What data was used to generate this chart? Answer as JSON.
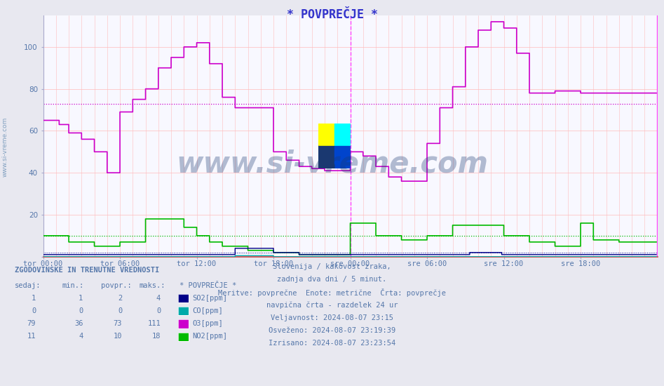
{
  "title": "* POVPREČJE *",
  "title_color": "#3333cc",
  "bg_color": "#e8e8f0",
  "plot_bg_color": "#f8f8ff",
  "ylim": [
    0,
    115
  ],
  "yticks": [
    0,
    20,
    40,
    60,
    80,
    100
  ],
  "tick_color": "#5577aa",
  "xtick_labels": [
    "tor 00:00",
    "tor 06:00",
    "tor 12:00",
    "tor 18:00",
    "sre 00:00",
    "sre 06:00",
    "sre 12:00",
    "sre 18:00"
  ],
  "grid_color": "#ffbbbb",
  "vline_color": "#ff44ff",
  "o3_color": "#cc00cc",
  "no2_color": "#00bb00",
  "so2_color": "#000088",
  "co_color": "#00aaaa",
  "hline_o3": 73,
  "hline_no2": 10,
  "hline_so2": 2,
  "watermark_text": "www.si-vreme.com",
  "watermark_color": "#1a3870",
  "watermark_alpha": 0.32,
  "sidebar_text": "www.si-vreme.com",
  "sidebar_color": "#7799bb",
  "info_lines": [
    "Slovenija / kakovost zraka,",
    "zadnja dva dni / 5 minut.",
    "Meritve: povprečne  Enote: metrične  Črta: povprečje",
    "navpična črta - razdelek 24 ur",
    "Veljavnost: 2024-08-07 23:15",
    "Osveženo: 2024-08-07 23:19:39",
    "Izrisano: 2024-08-07 23:23:54"
  ],
  "table_header": "ZGODOVINSKE IN TRENUTNE VREDNOSTI",
  "table_col_headers": [
    "sedaj:",
    "min.:",
    "povpr.:",
    "maks.:",
    "* POVPREČJE *"
  ],
  "table_rows": [
    [
      1,
      1,
      2,
      4,
      "SO2[ppm]",
      "#000088"
    ],
    [
      0,
      0,
      0,
      0,
      "CO[ppm]",
      "#00aaaa"
    ],
    [
      79,
      36,
      73,
      111,
      "O3[ppm]",
      "#cc00cc"
    ],
    [
      11,
      4,
      10,
      18,
      "NO2[ppm]",
      "#00bb00"
    ]
  ]
}
